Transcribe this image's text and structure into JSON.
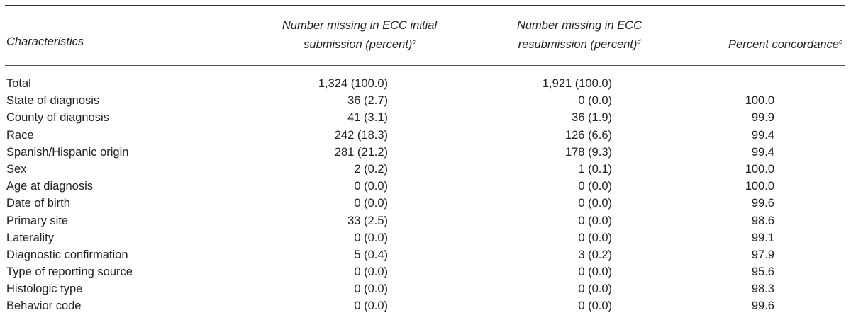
{
  "table": {
    "headers": {
      "characteristics": "Characteristics",
      "initial_line1": "Number missing in ECC initial",
      "initial_line2": "submission (percent)",
      "initial_sup": "c",
      "resub_line1": "Number missing in ECC",
      "resub_line2": "resubmission (percent)",
      "resub_sup": "d",
      "concordance": "Percent concordance",
      "concordance_sup": "e"
    },
    "rows": [
      {
        "characteristic": "Total",
        "initial": "1,324 (100.0)",
        "resubmission": "1,921 (100.0)",
        "concordance": ""
      },
      {
        "characteristic": "State of diagnosis",
        "initial": "36 (2.7)",
        "resubmission": "0 (0.0)",
        "concordance": "100.0"
      },
      {
        "characteristic": "County of diagnosis",
        "initial": "41 (3.1)",
        "resubmission": "36 (1.9)",
        "concordance": "99.9"
      },
      {
        "characteristic": "Race",
        "initial": "242 (18.3)",
        "resubmission": "126 (6.6)",
        "concordance": "99.4"
      },
      {
        "characteristic": "Spanish/Hispanic origin",
        "initial": "281 (21.2)",
        "resubmission": "178 (9.3)",
        "concordance": "99.4"
      },
      {
        "characteristic": "Sex",
        "initial": "2 (0.2)",
        "resubmission": "1 (0.1)",
        "concordance": "100.0"
      },
      {
        "characteristic": "Age at diagnosis",
        "initial": "0 (0.0)",
        "resubmission": "0 (0.0)",
        "concordance": "100.0"
      },
      {
        "characteristic": "Date of birth",
        "initial": "0 (0.0)",
        "resubmission": "0 (0.0)",
        "concordance": "99.6"
      },
      {
        "characteristic": "Primary site",
        "initial": "33 (2.5)",
        "resubmission": "0 (0.0)",
        "concordance": "98.6"
      },
      {
        "characteristic": "Laterality",
        "initial": "0 (0.0)",
        "resubmission": "0 (0.0)",
        "concordance": "99.1"
      },
      {
        "characteristic": "Diagnostic confirmation",
        "initial": "5 (0.4)",
        "resubmission": "3 (0.2)",
        "concordance": "97.9"
      },
      {
        "characteristic": "Type of reporting source",
        "initial": "0 (0.0)",
        "resubmission": "0 (0.0)",
        "concordance": "95.6"
      },
      {
        "characteristic": "Histologic type",
        "initial": "0 (0.0)",
        "resubmission": "0 (0.0)",
        "concordance": "98.3"
      },
      {
        "characteristic": "Behavior code",
        "initial": "0 (0.0)",
        "resubmission": "0 (0.0)",
        "concordance": "99.6"
      }
    ]
  }
}
